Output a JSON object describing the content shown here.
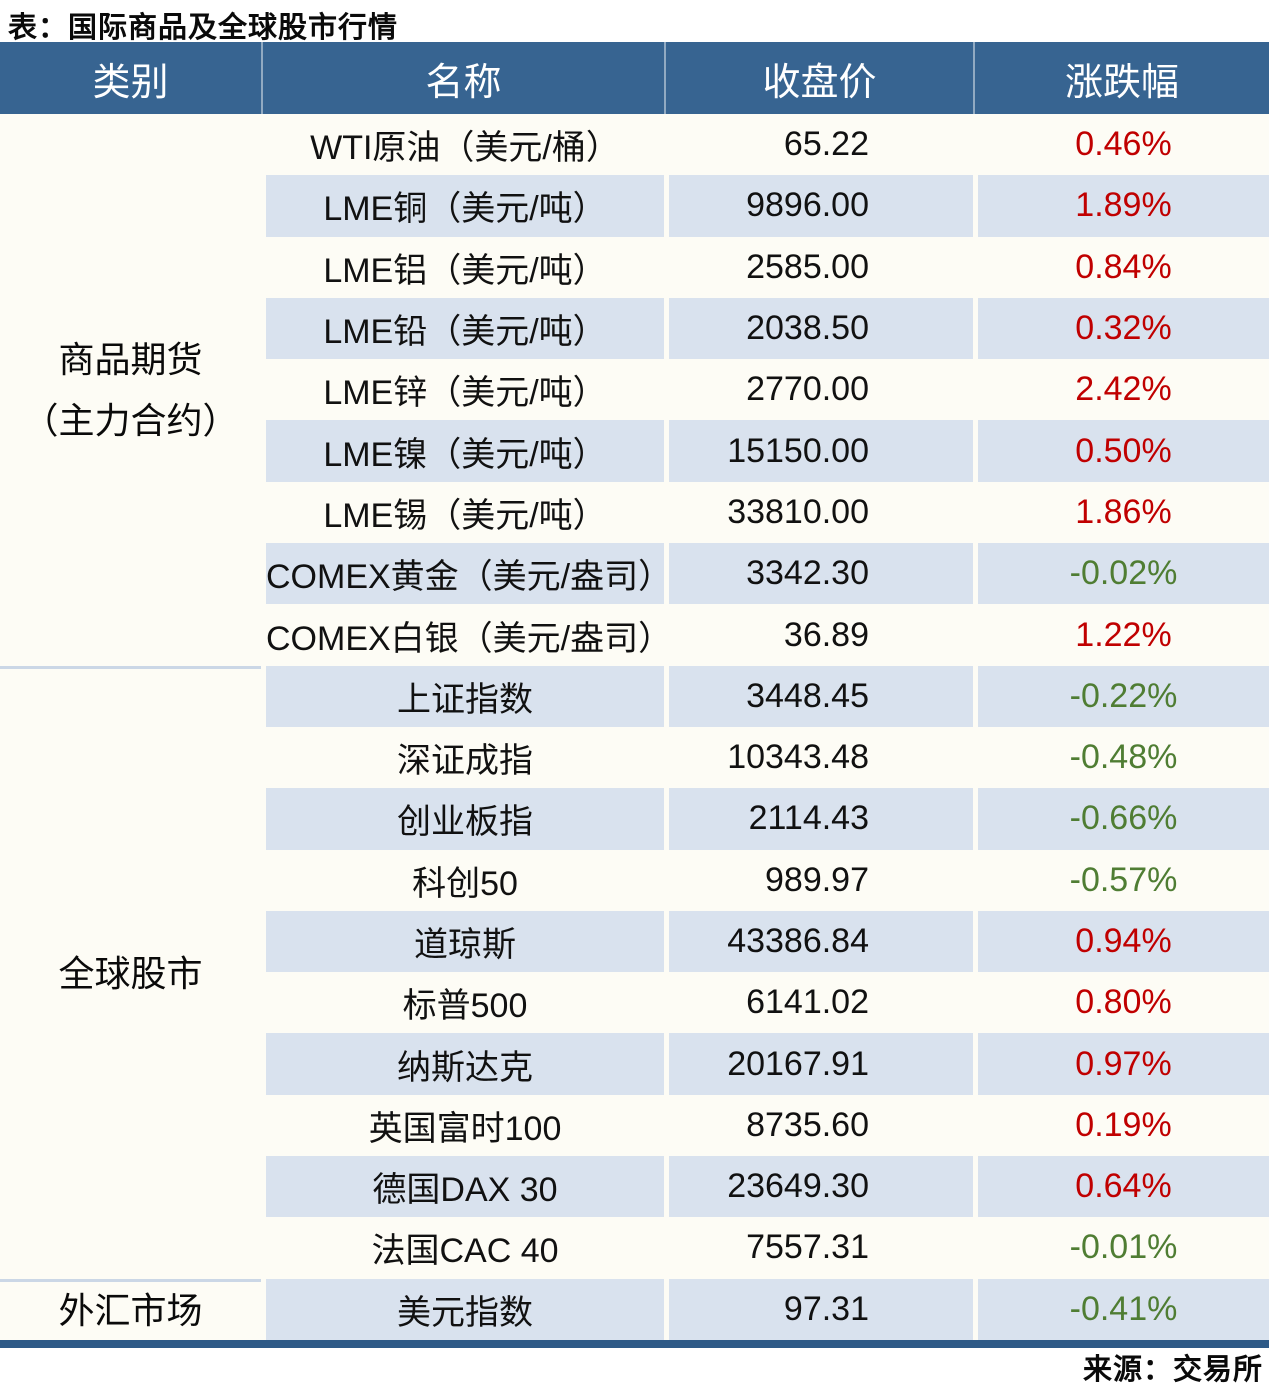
{
  "colors": {
    "up_red": "#C00000",
    "down_green": "#4F7D33",
    "header_bg": "#376491",
    "row_stripe": "#D9E2EE",
    "border_navy": "#2E5A87"
  },
  "chart_data": {
    "type": "table",
    "title": "表：国际商品及全球股市行情",
    "source": "来源：交易所",
    "columns": [
      "类别",
      "名称",
      "收盘价",
      "涨跌幅"
    ],
    "sections": [
      {
        "category_line1": "商品期货",
        "category_line2": "（主力合约）",
        "rows": [
          {
            "name": "WTI原油（美元/桶）",
            "close": "65.22",
            "change": "0.46%"
          },
          {
            "name": "LME铜（美元/吨）",
            "close": "9896.00",
            "change": "1.89%"
          },
          {
            "name": "LME铝（美元/吨）",
            "close": "2585.00",
            "change": "0.84%"
          },
          {
            "name": "LME铅（美元/吨）",
            "close": "2038.50",
            "change": "0.32%"
          },
          {
            "name": "LME锌（美元/吨）",
            "close": "2770.00",
            "change": "2.42%"
          },
          {
            "name": "LME镍（美元/吨）",
            "close": "15150.00",
            "change": "0.50%"
          },
          {
            "name": "LME锡（美元/吨）",
            "close": "33810.00",
            "change": "1.86%"
          },
          {
            "name": "COMEX黄金（美元/盎司）",
            "close": "3342.30",
            "change": "-0.02%"
          },
          {
            "name": "COMEX白银（美元/盎司）",
            "close": "36.89",
            "change": "1.22%"
          }
        ]
      },
      {
        "category_line1": "全球股市",
        "rows": [
          {
            "name": "上证指数",
            "close": "3448.45",
            "change": "-0.22%"
          },
          {
            "name": "深证成指",
            "close": "10343.48",
            "change": "-0.48%"
          },
          {
            "name": "创业板指",
            "close": "2114.43",
            "change": "-0.66%"
          },
          {
            "name": "科创50",
            "close": "989.97",
            "change": "-0.57%"
          },
          {
            "name": "道琼斯",
            "close": "43386.84",
            "change": "0.94%"
          },
          {
            "name": "标普500",
            "close": "6141.02",
            "change": "0.80%"
          },
          {
            "name": "纳斯达克",
            "close": "20167.91",
            "change": "0.97%"
          },
          {
            "name": "英国富时100",
            "close": "8735.60",
            "change": "0.19%"
          },
          {
            "name": "德国DAX 30",
            "close": "23649.30",
            "change": "0.64%"
          },
          {
            "name": "法国CAC 40",
            "close": "7557.31",
            "change": "-0.01%"
          }
        ]
      },
      {
        "category_line1": "外汇市场",
        "rows": [
          {
            "name": "美元指数",
            "close": "97.31",
            "change": "-0.41%"
          }
        ]
      }
    ]
  }
}
